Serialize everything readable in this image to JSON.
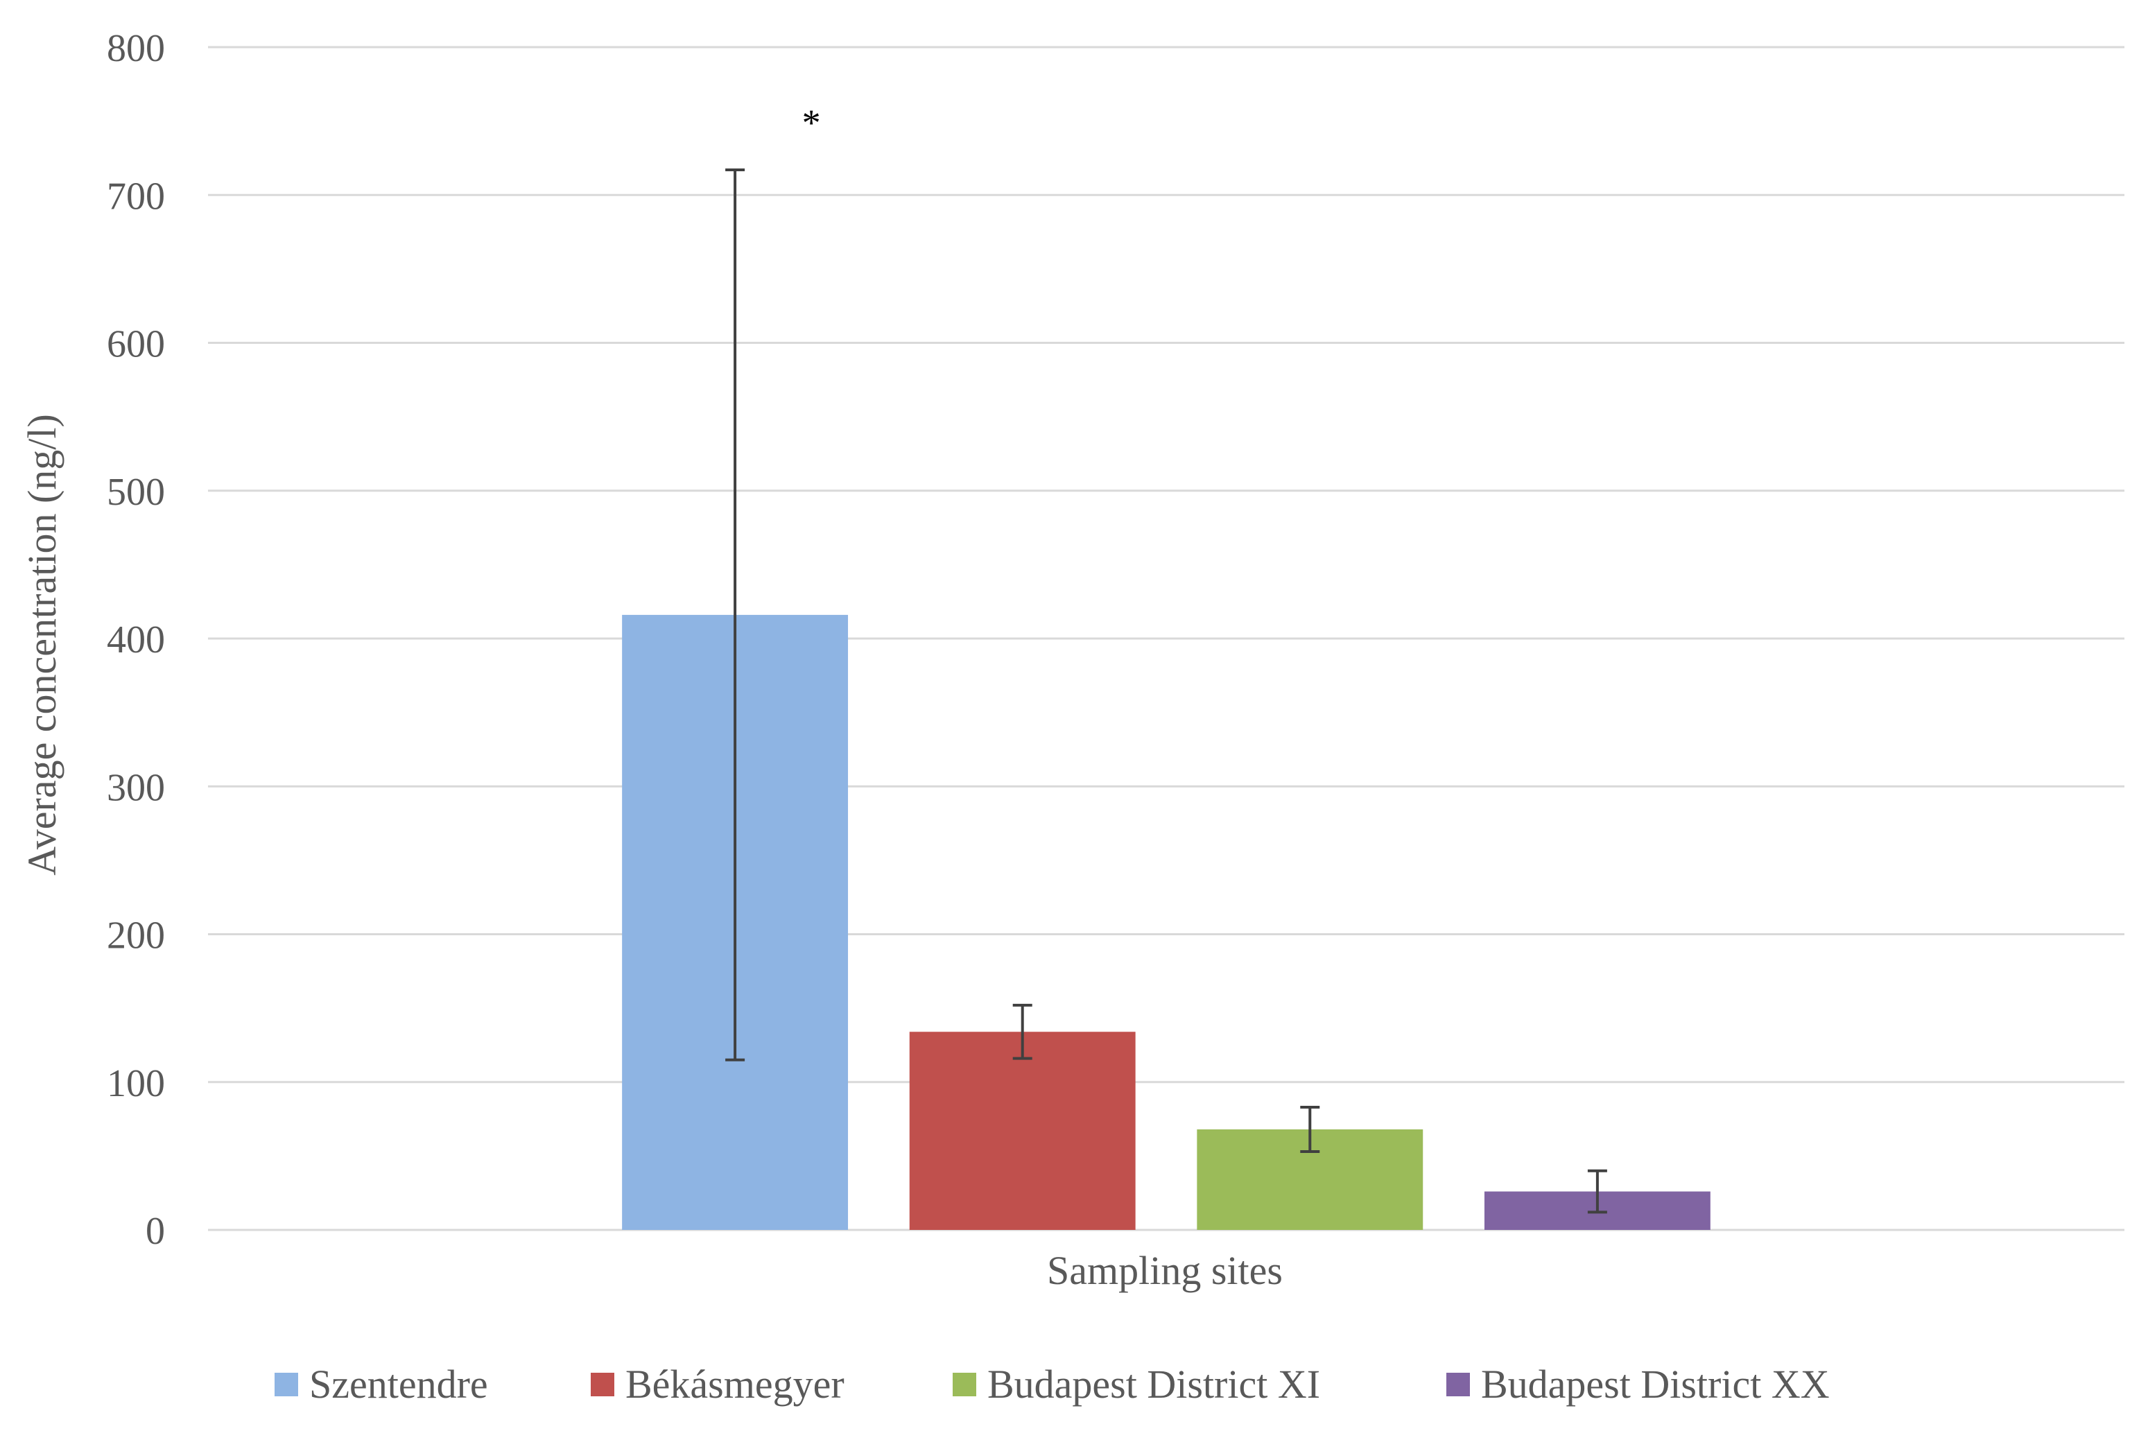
{
  "chart_data": {
    "type": "bar",
    "title": "",
    "xlabel": "Sampling sites",
    "ylabel": "Average concentration (ng/l)",
    "ylim": [
      0,
      800
    ],
    "yticks": [
      0,
      100,
      200,
      300,
      400,
      500,
      600,
      700,
      800
    ],
    "grid": true,
    "legend_position": "bottom",
    "series": [
      {
        "name": "Szentendre",
        "value": 416,
        "error": 301,
        "color": "#8EB4E3",
        "annotation": "*"
      },
      {
        "name": "Békásmegyer",
        "value": 134,
        "error": 18,
        "color": "#C0504D",
        "annotation": ""
      },
      {
        "name": "Budapest District XI",
        "value": 68,
        "error": 15,
        "color": "#9BBB59",
        "annotation": ""
      },
      {
        "name": "Budapest District XX",
        "value": 26,
        "error": 14,
        "color": "#8064A2",
        "annotation": ""
      }
    ]
  }
}
